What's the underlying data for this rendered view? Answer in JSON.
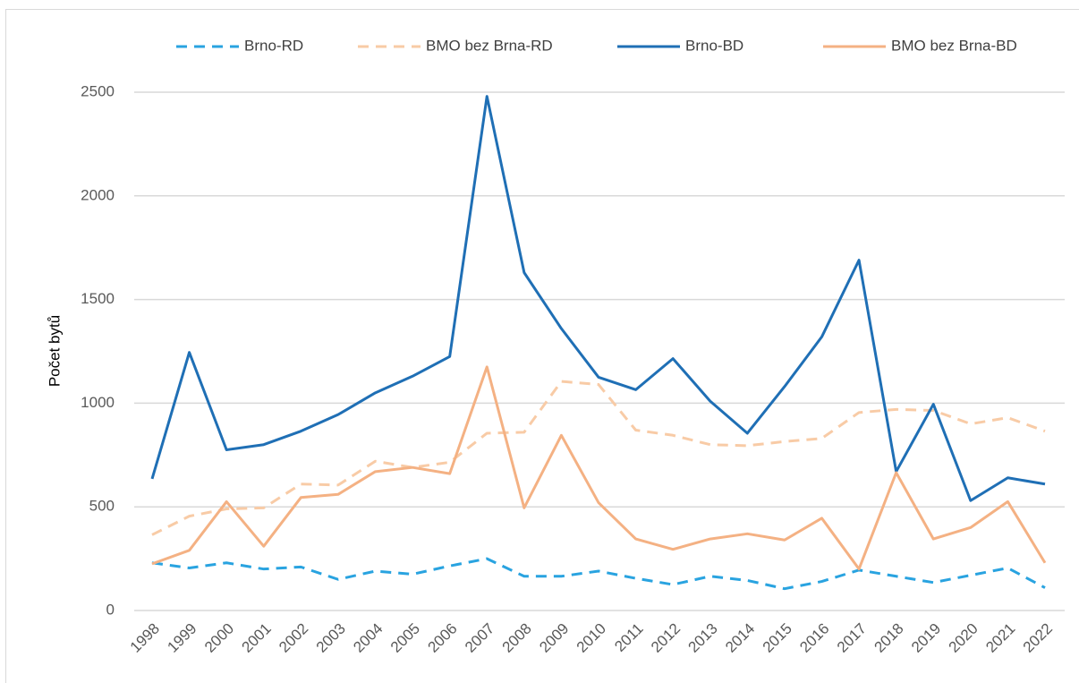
{
  "chart_data": {
    "type": "line",
    "y_label": "Počet bytů",
    "categories": [
      "1998",
      "1999",
      "2000",
      "2001",
      "2002",
      "2003",
      "2004",
      "2005",
      "2006",
      "2007",
      "2008",
      "2009",
      "2010",
      "2011",
      "2012",
      "2013",
      "2014",
      "2015",
      "2016",
      "2017",
      "2018",
      "2019",
      "2020",
      "2021",
      "2022"
    ],
    "series": [
      {
        "name": "Brno-RD",
        "color": "#29a3e0",
        "dashed": true,
        "values": [
          230,
          205,
          230,
          200,
          210,
          150,
          190,
          175,
          215,
          250,
          165,
          165,
          190,
          155,
          125,
          165,
          145,
          105,
          140,
          195,
          165,
          135,
          170,
          205,
          110
        ]
      },
      {
        "name": "BMO bez Brna-RD",
        "color": "#f8cba6",
        "dashed": true,
        "values": [
          365,
          455,
          490,
          495,
          610,
          605,
          720,
          690,
          715,
          855,
          860,
          1105,
          1090,
          870,
          845,
          800,
          795,
          815,
          830,
          955,
          970,
          965,
          900,
          930,
          865
        ]
      },
      {
        "name": "Brno-BD",
        "color": "#1f6fb5",
        "dashed": false,
        "values": [
          635,
          1245,
          775,
          800,
          865,
          945,
          1050,
          1130,
          1225,
          2480,
          1630,
          1360,
          1125,
          1065,
          1215,
          1010,
          855,
          1080,
          1320,
          1690,
          670,
          995,
          530,
          640,
          610
        ]
      },
      {
        "name": "BMO bez Brna-BD",
        "color": "#f4b183",
        "dashed": false,
        "values": [
          225,
          290,
          525,
          310,
          545,
          560,
          670,
          690,
          660,
          1175,
          495,
          845,
          520,
          345,
          295,
          345,
          370,
          340,
          445,
          200,
          665,
          345,
          400,
          525,
          230
        ]
      }
    ],
    "ylim": [
      0,
      2500
    ],
    "yticks": [
      0,
      500,
      1000,
      1500,
      2000,
      2500
    ],
    "grid": true,
    "legend": "top"
  }
}
